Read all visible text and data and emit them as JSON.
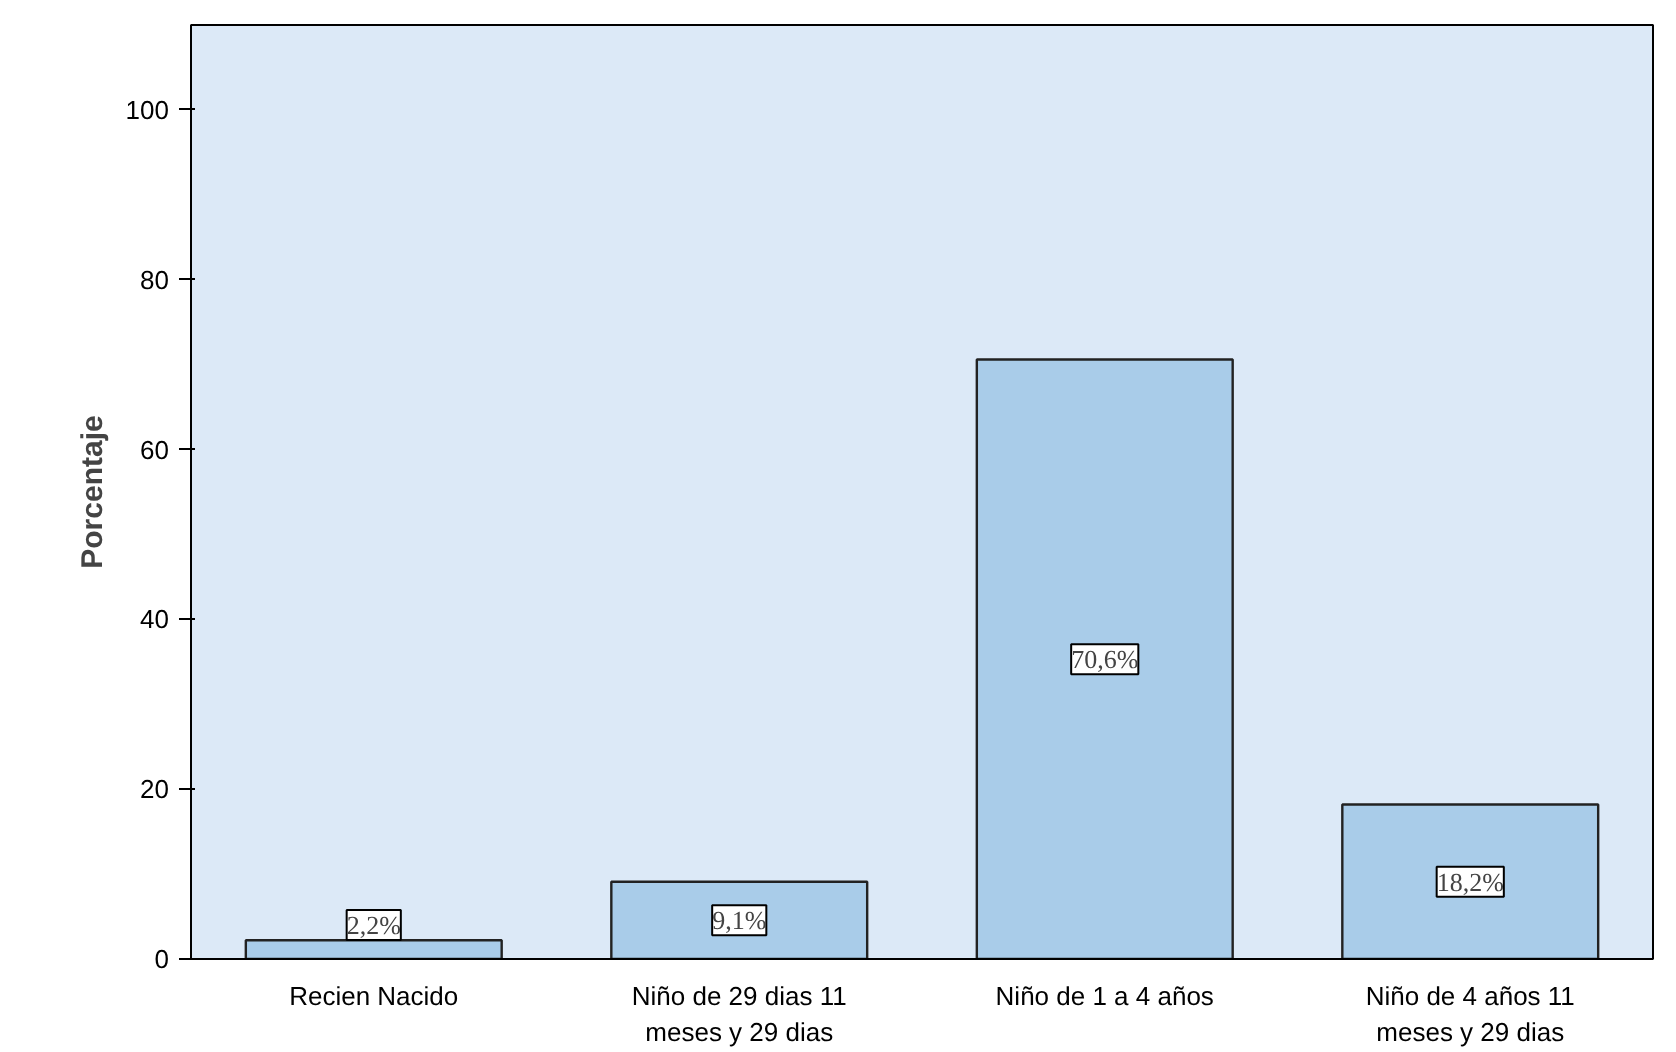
{
  "chart_data": {
    "type": "bar",
    "ylabel": "Porcentaje",
    "categories": [
      "Recien Nacido",
      "Niño de 29 dias 11\nmeses y 29 dias",
      "Niño de 1 a 4 años",
      "Niño de 4 años 11\nmeses y 29 dias"
    ],
    "values": [
      2.2,
      9.1,
      70.6,
      18.2
    ],
    "value_labels": [
      "2,2%",
      "9,1%",
      "70,6%",
      "18,2%"
    ],
    "color": "#a9cce9",
    "ylim": [
      0,
      110
    ],
    "yticks": [
      0,
      20,
      40,
      60,
      80,
      100
    ],
    "grid": false
  }
}
